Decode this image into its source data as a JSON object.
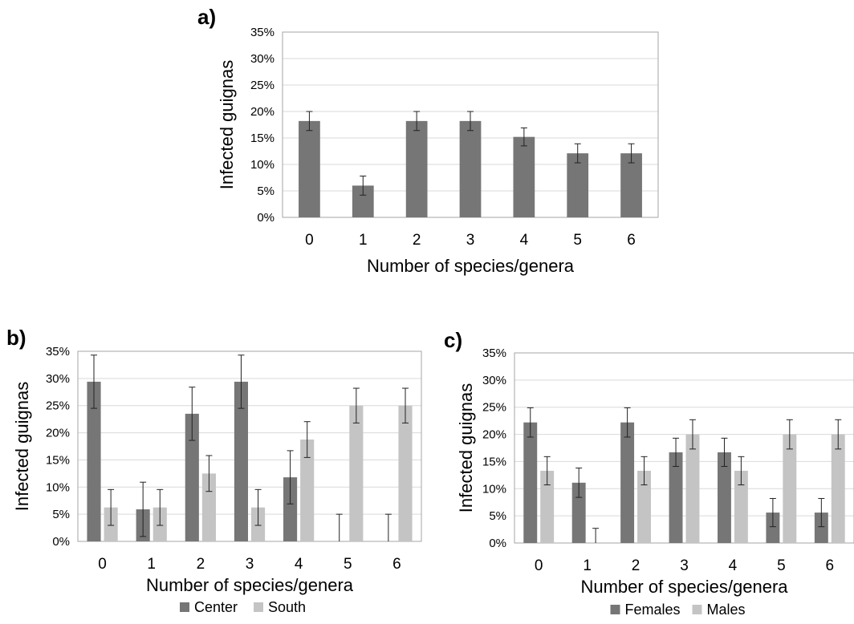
{
  "colors": {
    "dark": "#767676",
    "light": "#c4c4c4",
    "grid": "#d9d9d9",
    "frame": "#a6a6a6",
    "error": "#222222"
  },
  "chart_data": [
    {
      "panel_label": "a)",
      "type": "bar",
      "categories": [
        "0",
        "1",
        "2",
        "3",
        "4",
        "5",
        "6"
      ],
      "ylabel": "Infected guignas",
      "xlabel": "Number of species/genera",
      "ylim": [
        0,
        35
      ],
      "yticks": [
        "0%",
        "5%",
        "10%",
        "15%",
        "20%",
        "25%",
        "30%",
        "35%"
      ],
      "grid": true,
      "series": [
        {
          "values": [
            18.2,
            6.0,
            18.2,
            18.2,
            15.2,
            12.1,
            12.1
          ],
          "errors": [
            1.8,
            1.8,
            1.8,
            1.8,
            1.7,
            1.8,
            1.8
          ],
          "color": "#767676"
        }
      ]
    },
    {
      "panel_label": "b)",
      "type": "bar",
      "categories": [
        "0",
        "1",
        "2",
        "3",
        "4",
        "5",
        "6"
      ],
      "ylabel": "Infected guignas",
      "xlabel": "Number of species/genera",
      "ylim": [
        0,
        35
      ],
      "yticks": [
        "0%",
        "5%",
        "10%",
        "15%",
        "20%",
        "25%",
        "30%",
        "35%"
      ],
      "grid": true,
      "legend": "bottom",
      "series": [
        {
          "name": "Center",
          "values": [
            29.4,
            5.9,
            23.5,
            29.4,
            11.8,
            0,
            0
          ],
          "errors": [
            4.9,
            5.0,
            4.9,
            4.9,
            4.9,
            5.0,
            5.0
          ],
          "color": "#767676"
        },
        {
          "name": "South",
          "values": [
            6.25,
            6.25,
            12.5,
            6.25,
            18.75,
            25,
            25
          ],
          "errors": [
            3.3,
            3.3,
            3.3,
            3.3,
            3.3,
            3.2,
            3.2
          ],
          "color": "#c4c4c4"
        }
      ]
    },
    {
      "panel_label": "c)",
      "type": "bar",
      "categories": [
        "0",
        "1",
        "2",
        "3",
        "4",
        "5",
        "6"
      ],
      "ylabel": "Infected guignas",
      "xlabel": "Number of species/genera",
      "ylim": [
        0,
        35
      ],
      "yticks": [
        "0%",
        "5%",
        "10%",
        "15%",
        "20%",
        "25%",
        "30%",
        "35%"
      ],
      "grid": true,
      "legend": "bottom",
      "series": [
        {
          "name": "Females",
          "values": [
            22.2,
            11.1,
            22.2,
            16.7,
            16.7,
            5.6,
            5.6
          ],
          "errors": [
            2.7,
            2.7,
            2.7,
            2.6,
            2.6,
            2.6,
            2.6
          ],
          "color": "#767676"
        },
        {
          "name": "Males",
          "values": [
            13.3,
            0,
            13.3,
            20,
            13.3,
            20,
            20
          ],
          "errors": [
            2.6,
            2.7,
            2.6,
            2.7,
            2.6,
            2.7,
            2.7
          ],
          "color": "#c4c4c4"
        }
      ]
    }
  ]
}
